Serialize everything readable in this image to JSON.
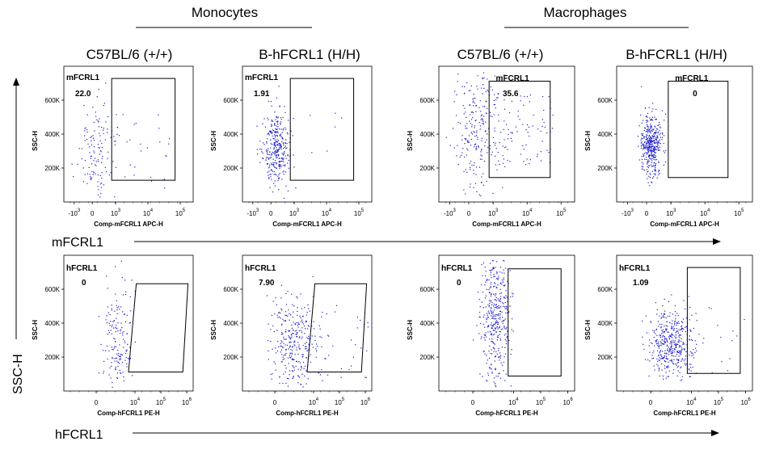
{
  "headers": [
    {
      "text": "Monocytes"
    },
    {
      "text": "Macrophages"
    }
  ],
  "samples": [
    "C57BL/6 (+/+)",
    "B-hFCRL1 (H/H)",
    "C57BL/6 (+/+)",
    "B-hFCRL1 (H/H)"
  ],
  "row_axes": [
    "mFCRL1",
    "hFCRL1"
  ],
  "y_axis_label": "SSC-H",
  "colors": {
    "events": "#1a1acc",
    "frame": "#000000"
  },
  "chart_data": [
    {
      "type": "scatter",
      "cell_type": "Monocytes",
      "sample": "C57BL/6 (+/+)",
      "marker": "mFCRL1",
      "gate_label": "mFCRL1",
      "gate_value": "22.0",
      "xlabel": "Comp-mFCRL1 APC-H",
      "ylabel": "SSC-H",
      "x_ticks": [
        {
          "base": "-10",
          "exp": "3"
        },
        {
          "base": "0",
          "exp": ""
        },
        {
          "base": "10",
          "exp": "3"
        },
        {
          "base": "10",
          "exp": "4"
        },
        {
          "base": "10",
          "exp": "5"
        }
      ],
      "y_ticks": [
        "200K",
        "400K",
        "600K"
      ],
      "scatter": {
        "cx": 0.25,
        "cy": 0.62,
        "sx": 0.07,
        "sy": 0.2,
        "n": 160,
        "tail": 0.18
      }
    },
    {
      "type": "scatter",
      "cell_type": "Monocytes",
      "sample": "B-hFCRL1 (H/H)",
      "marker": "mFCRL1",
      "gate_label": "mFCRL1",
      "gate_value": "1.91",
      "xlabel": "Comp-mFCRL1 APC-H",
      "ylabel": "SSC-H",
      "x_ticks": [
        {
          "base": "-10",
          "exp": "3"
        },
        {
          "base": "0",
          "exp": ""
        },
        {
          "base": "10",
          "exp": "3"
        },
        {
          "base": "10",
          "exp": "4"
        },
        {
          "base": "10",
          "exp": "5"
        }
      ],
      "y_ticks": [
        "200K",
        "400K",
        "600K"
      ],
      "scatter": {
        "cx": 0.26,
        "cy": 0.6,
        "sx": 0.05,
        "sy": 0.14,
        "n": 340,
        "tail": 0.02
      }
    },
    {
      "type": "scatter",
      "cell_type": "Macrophages",
      "sample": "C57BL/6 (+/+)",
      "marker": "mFCRL1",
      "gate_label": "mFCRL1",
      "gate_value": "35.6",
      "xlabel": "Comp-mFCRL1 APC-H",
      "ylabel": "SSC-H",
      "x_ticks": [
        {
          "base": "-10",
          "exp": "3"
        },
        {
          "base": "0",
          "exp": ""
        },
        {
          "base": "10",
          "exp": "3"
        },
        {
          "base": "10",
          "exp": "4"
        },
        {
          "base": "10",
          "exp": "5"
        }
      ],
      "y_ticks": [
        "200K",
        "400K",
        "600K"
      ],
      "scatter": {
        "cx": 0.27,
        "cy": 0.45,
        "sx": 0.09,
        "sy": 0.28,
        "n": 340,
        "tail": 0.25
      }
    },
    {
      "type": "scatter",
      "cell_type": "Macrophages",
      "sample": "B-hFCRL1 (H/H)",
      "marker": "mFCRL1",
      "gate_label": "mFCRL1",
      "gate_value": "0",
      "xlabel": "Comp-mFCRL1 APC-H",
      "ylabel": "SSC-H",
      "x_ticks": [
        {
          "base": "-10",
          "exp": "3"
        },
        {
          "base": "0",
          "exp": ""
        },
        {
          "base": "10",
          "exp": "3"
        },
        {
          "base": "10",
          "exp": "4"
        },
        {
          "base": "10",
          "exp": "5"
        }
      ],
      "y_ticks": [
        "200K",
        "400K",
        "600K"
      ],
      "scatter": {
        "cx": 0.25,
        "cy": 0.58,
        "sx": 0.04,
        "sy": 0.12,
        "n": 420,
        "tail": 0.0
      }
    },
    {
      "type": "scatter",
      "cell_type": "Monocytes",
      "sample": "C57BL/6 (+/+)",
      "marker": "hFCRL1",
      "gate_label": "hFCRL1",
      "gate_value": "0",
      "xlabel": "Comp-hFCRL1 PE-H",
      "ylabel": "SSC-H",
      "x_ticks": [
        {
          "base": "0",
          "exp": ""
        },
        {
          "base": "10",
          "exp": "4"
        },
        {
          "base": "10",
          "exp": "5"
        },
        {
          "base": "10",
          "exp": "6"
        }
      ],
      "y_ticks": [
        "200K",
        "400K",
        "600K"
      ],
      "scatter": {
        "cx": 0.41,
        "cy": 0.62,
        "sx": 0.06,
        "sy": 0.2,
        "n": 170,
        "tail": 0.0
      }
    },
    {
      "type": "scatter",
      "cell_type": "Monocytes",
      "sample": "B-hFCRL1 (H/H)",
      "marker": "hFCRL1",
      "gate_label": "hFCRL1",
      "gate_value": "7.90",
      "xlabel": "Comp-hFCRL1 PE-H",
      "ylabel": "SSC-H",
      "x_ticks": [
        {
          "base": "0",
          "exp": ""
        },
        {
          "base": "10",
          "exp": "4"
        },
        {
          "base": "10",
          "exp": "5"
        },
        {
          "base": "10",
          "exp": "6"
        }
      ],
      "y_ticks": [
        "200K",
        "400K",
        "600K"
      ],
      "scatter": {
        "cx": 0.4,
        "cy": 0.63,
        "sx": 0.09,
        "sy": 0.16,
        "n": 340,
        "tail": 0.1
      }
    },
    {
      "type": "scatter",
      "cell_type": "Macrophages",
      "sample": "C57BL/6 (+/+)",
      "marker": "hFCRL1",
      "gate_label": "hFCRL1",
      "gate_value": "0",
      "xlabel": "Comp-hFCRL1 PE-H",
      "ylabel": "SSC-H",
      "x_ticks": [
        {
          "base": "0",
          "exp": ""
        },
        {
          "base": "10",
          "exp": "4"
        },
        {
          "base": "10",
          "exp": "5"
        },
        {
          "base": "10",
          "exp": "6"
        }
      ],
      "y_ticks": [
        "200K",
        "400K",
        "600K"
      ],
      "scatter": {
        "cx": 0.41,
        "cy": 0.42,
        "sx": 0.06,
        "sy": 0.26,
        "n": 420,
        "tail": 0.0
      }
    },
    {
      "type": "scatter",
      "cell_type": "Macrophages",
      "sample": "B-hFCRL1 (H/H)",
      "marker": "hFCRL1",
      "gate_label": "hFCRL1",
      "gate_value": "1.09",
      "xlabel": "Comp-hFCRL1 PE-H",
      "ylabel": "SSC-H",
      "x_ticks": [
        {
          "base": "0",
          "exp": ""
        },
        {
          "base": "10",
          "exp": "4"
        },
        {
          "base": "10",
          "exp": "5"
        },
        {
          "base": "10",
          "exp": "6"
        }
      ],
      "y_ticks": [
        "200K",
        "400K",
        "600K"
      ],
      "scatter": {
        "cx": 0.4,
        "cy": 0.65,
        "sx": 0.08,
        "sy": 0.13,
        "n": 460,
        "tail": 0.04
      }
    }
  ]
}
